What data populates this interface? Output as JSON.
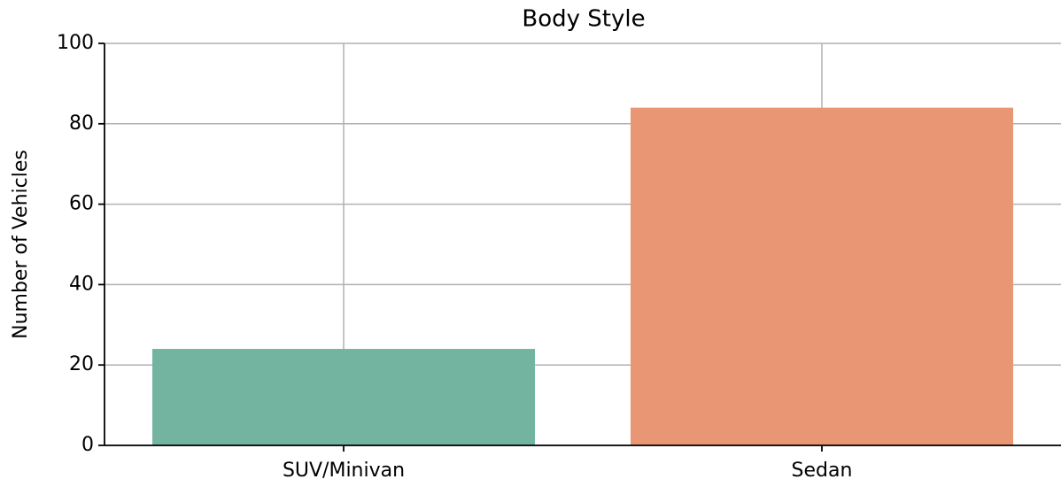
{
  "chart_data": {
    "type": "bar",
    "title": "Body Style",
    "y_label": "Number of Vehicles",
    "categories": [
      "SUV/Minivan",
      "Sedan"
    ],
    "values": [
      24,
      84
    ],
    "colors": [
      "#73b4a0",
      "#e89673"
    ],
    "ylim": [
      0,
      100
    ],
    "yticks": [
      0,
      20,
      40,
      60,
      80,
      100
    ],
    "grid": true
  }
}
